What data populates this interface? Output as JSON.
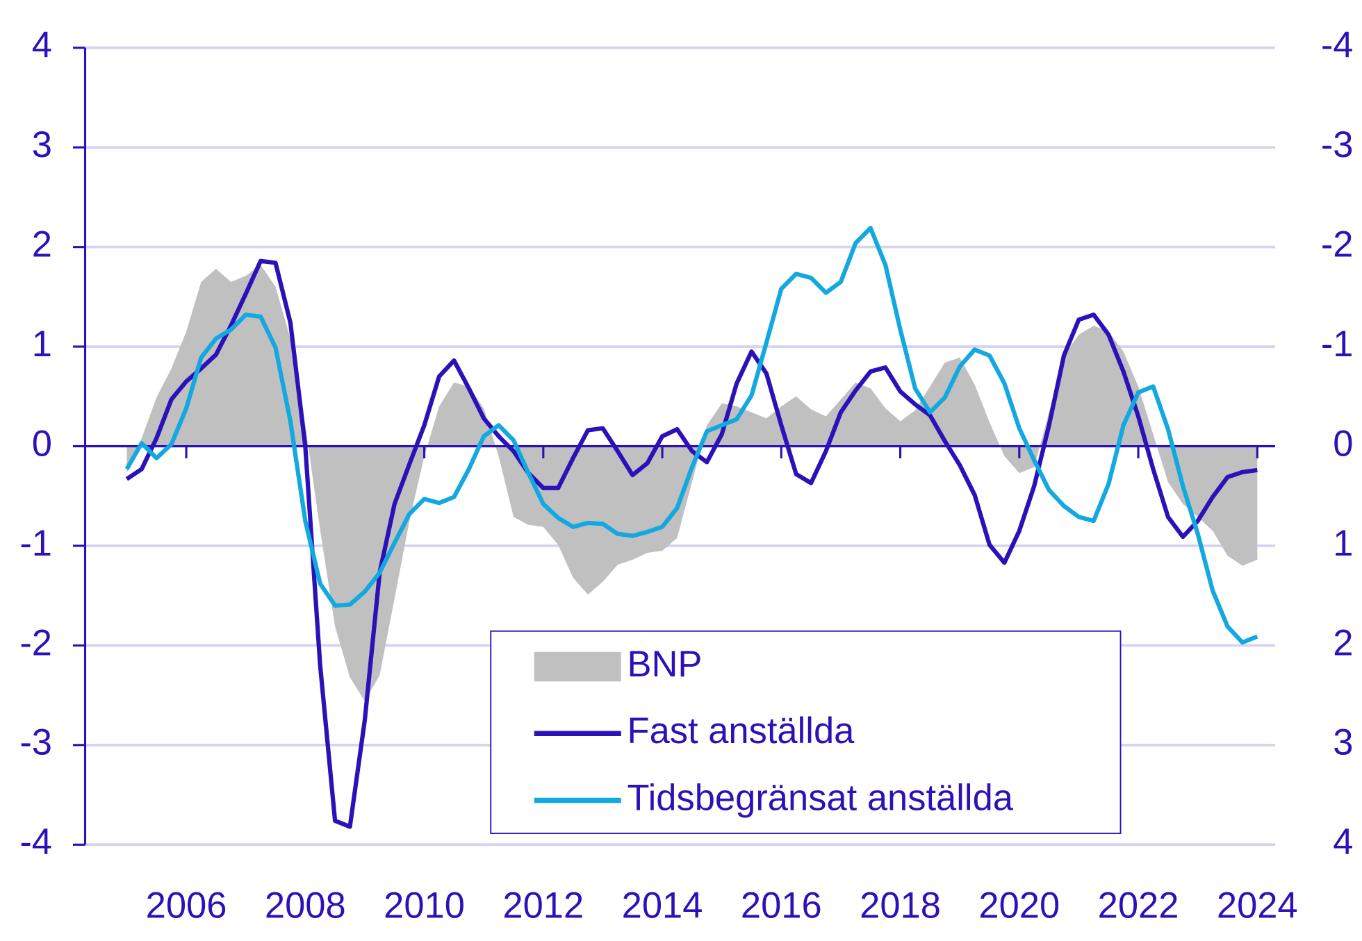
{
  "chart_data": {
    "type": "line",
    "x": [
      2005,
      2005.25,
      2005.5,
      2005.75,
      2006,
      2006.25,
      2006.5,
      2006.75,
      2007,
      2007.25,
      2007.5,
      2007.75,
      2008,
      2008.25,
      2008.5,
      2008.75,
      2009,
      2009.25,
      2009.5,
      2009.75,
      2010,
      2010.25,
      2010.5,
      2010.75,
      2011,
      2011.25,
      2011.5,
      2011.75,
      2012,
      2012.25,
      2012.5,
      2012.75,
      2013,
      2013.25,
      2013.5,
      2013.75,
      2014,
      2014.25,
      2014.5,
      2014.75,
      2015,
      2015.25,
      2015.5,
      2015.75,
      2016,
      2016.25,
      2016.5,
      2016.75,
      2017,
      2017.25,
      2017.5,
      2017.75,
      2018,
      2018.25,
      2018.5,
      2018.75,
      2019,
      2019.25,
      2019.5,
      2019.75,
      2020,
      2020.25,
      2020.5,
      2020.75,
      2021,
      2021.25,
      2021.5,
      2021.75,
      2022,
      2022.25,
      2022.5,
      2022.75,
      2023,
      2023.25,
      2023.5,
      2023.75,
      2024
    ],
    "series": [
      {
        "name": "BNP",
        "kind": "area",
        "color": "#c0c0c0",
        "values": [
          -0.27,
          0.08,
          0.49,
          0.78,
          1.15,
          1.65,
          1.78,
          1.65,
          1.71,
          1.82,
          1.6,
          1.08,
          0.21,
          -0.84,
          -1.81,
          -2.32,
          -2.56,
          -2.3,
          -1.53,
          -0.75,
          -0.1,
          0.4,
          0.64,
          0.6,
          0.38,
          -0.1,
          -0.71,
          -0.79,
          -0.81,
          -0.99,
          -1.32,
          -1.49,
          -1.36,
          -1.19,
          -1.14,
          -1.07,
          -1.05,
          -0.92,
          -0.36,
          0.21,
          0.43,
          0.4,
          0.34,
          0.28,
          0.4,
          0.5,
          0.37,
          0.3,
          0.47,
          0.64,
          0.58,
          0.38,
          0.25,
          0.36,
          0.6,
          0.84,
          0.89,
          0.62,
          0.24,
          -0.1,
          -0.27,
          -0.21,
          0.34,
          0.91,
          1.12,
          1.21,
          1.15,
          0.95,
          0.6,
          0.12,
          -0.36,
          -0.58,
          -0.71,
          -0.85,
          -1.1,
          -1.2,
          -1.14
        ]
      },
      {
        "name": "Fast anställda",
        "kind": "line",
        "color": "#2b12b8",
        "values": [
          -0.33,
          -0.23,
          0.08,
          0.47,
          0.65,
          0.78,
          0.92,
          1.21,
          1.53,
          1.86,
          1.84,
          1.24,
          0.0,
          -2.2,
          -3.76,
          -3.82,
          -2.75,
          -1.27,
          -0.58,
          -0.18,
          0.21,
          0.7,
          0.86,
          0.58,
          0.28,
          0.1,
          -0.05,
          -0.27,
          -0.42,
          -0.42,
          -0.12,
          0.16,
          0.18,
          -0.05,
          -0.29,
          -0.17,
          0.1,
          0.17,
          -0.05,
          -0.16,
          0.12,
          0.63,
          0.95,
          0.73,
          0.21,
          -0.28,
          -0.37,
          -0.05,
          0.34,
          0.56,
          0.75,
          0.79,
          0.55,
          0.42,
          0.31,
          0.05,
          -0.19,
          -0.49,
          -0.99,
          -1.17,
          -0.85,
          -0.4,
          0.21,
          0.91,
          1.27,
          1.32,
          1.12,
          0.75,
          0.3,
          -0.23,
          -0.71,
          -0.91,
          -0.75,
          -0.51,
          -0.31,
          -0.26,
          -0.24
        ]
      },
      {
        "name": "Tidsbegränsat anställda",
        "kind": "line",
        "color": "#14a8e0",
        "values": [
          -0.23,
          0.03,
          -0.12,
          0.02,
          0.38,
          0.89,
          1.08,
          1.17,
          1.32,
          1.3,
          0.99,
          0.25,
          -0.75,
          -1.38,
          -1.6,
          -1.59,
          -1.46,
          -1.27,
          -0.97,
          -0.68,
          -0.53,
          -0.57,
          -0.51,
          -0.23,
          0.1,
          0.21,
          0.06,
          -0.27,
          -0.58,
          -0.72,
          -0.81,
          -0.77,
          -0.78,
          -0.88,
          -0.9,
          -0.86,
          -0.81,
          -0.62,
          -0.21,
          0.15,
          0.21,
          0.27,
          0.51,
          1.04,
          1.58,
          1.73,
          1.69,
          1.54,
          1.65,
          2.04,
          2.19,
          1.82,
          1.17,
          0.58,
          0.34,
          0.49,
          0.8,
          0.97,
          0.91,
          0.63,
          0.18,
          -0.14,
          -0.44,
          -0.6,
          -0.71,
          -0.75,
          -0.38,
          0.21,
          0.54,
          0.6,
          0.17,
          -0.4,
          -0.88,
          -1.45,
          -1.81,
          -1.97,
          -1.91
        ]
      }
    ],
    "xlim": [
      2004.3,
      2024.3
    ],
    "xticks": [
      2006,
      2008,
      2010,
      2012,
      2014,
      2016,
      2018,
      2020,
      2022,
      2024
    ],
    "ylim": [
      -4,
      4
    ],
    "yticks": [
      -4,
      -3,
      -2,
      -1,
      0,
      1,
      2,
      3,
      4
    ],
    "y2lim": [
      4,
      -4
    ],
    "y2ticks": [
      -4,
      -3,
      -2,
      -1,
      0,
      1,
      2,
      3,
      4
    ],
    "grid": true,
    "legend": "bottom-center"
  }
}
